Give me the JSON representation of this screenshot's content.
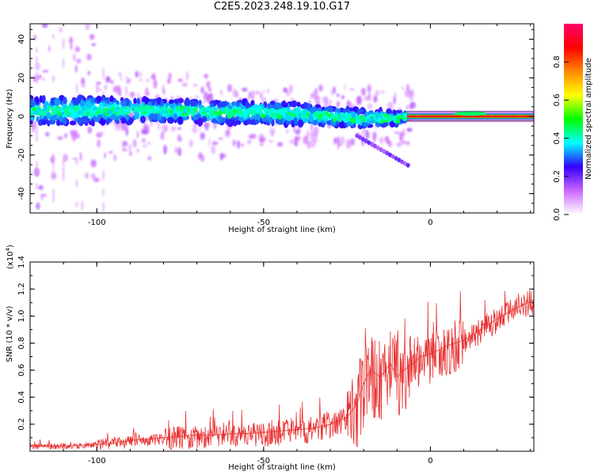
{
  "title": "C2E5.2023.248.19.10.G17",
  "chart_data": [
    {
      "type": "heatmap",
      "title": "C2E5.2023.248.19.10.G17",
      "xlabel": "Height of straight line (km)",
      "ylabel": "Frequency (Hz)",
      "xlim": [
        -120,
        31
      ],
      "ylim": [
        -50,
        48
      ],
      "xticks": [
        -100,
        -50,
        0
      ],
      "xtick_labels": [
        "-100",
        "-50",
        "0"
      ],
      "yticks": [
        -40,
        -20,
        0,
        20,
        40
      ],
      "ytick_labels": [
        "-40",
        "-20",
        "0",
        "20",
        "40"
      ],
      "description_series": {
        "name": "Normalized spectral amplitude ridge",
        "x": [
          -118,
          -100,
          -80,
          -60,
          -50,
          -40,
          -30,
          -20,
          -10,
          -7,
          0,
          10,
          20,
          30
        ],
        "center_freq": [
          3,
          3,
          3,
          2,
          2,
          1,
          0,
          -1,
          -1,
          0,
          0,
          0,
          0,
          0
        ],
        "spread": [
          6,
          6,
          5,
          5,
          5,
          5,
          4,
          4,
          3,
          1,
          1,
          1.5,
          1,
          1
        ],
        "amplitude": [
          0.35,
          0.35,
          0.35,
          0.33,
          0.33,
          0.35,
          0.38,
          0.4,
          0.45,
          0.9,
          0.88,
          0.9,
          0.88,
          0.88
        ]
      },
      "colorbar": {
        "label": "Normalized spectral amplitude",
        "range": [
          0,
          1
        ],
        "ticks": [
          0.0,
          0.2,
          0.4,
          0.6,
          0.8
        ],
        "tick_labels": [
          "0.0",
          "0.2",
          "0.4",
          "0.6",
          "0.8"
        ],
        "colors": [
          "#ffffff",
          "#cc66ff",
          "#3300ff",
          "#00ffff",
          "#00ff00",
          "#ffff00",
          "#ff8800",
          "#ff0000",
          "#ff0066"
        ]
      }
    },
    {
      "type": "line",
      "title": "",
      "xlabel": "Height of straight line (km)",
      "ylabel": "SNR (10 * v/v)",
      "scale_label": "(x10",
      "scale_exp": "4",
      "scale_close": ")",
      "xlim": [
        -120,
        31
      ],
      "ylim": [
        0,
        1.4
      ],
      "xticks": [
        -100,
        -50,
        0
      ],
      "xtick_labels": [
        "-100",
        "-50",
        "0"
      ],
      "yticks": [
        0.2,
        0.4,
        0.6,
        0.8,
        1.0,
        1.2,
        1.4
      ],
      "ytick_labels": [
        "0.2",
        "0.4",
        "0.6",
        "0.8",
        "1.0",
        "1.2",
        "1.4"
      ],
      "series": [
        {
          "name": "SNR",
          "color": "#e83030",
          "x": [
            -120,
            -110,
            -100,
            -95,
            -90,
            -85,
            -80,
            -75,
            -70,
            -65,
            -60,
            -55,
            -50,
            -45,
            -40,
            -35,
            -30,
            -25,
            -22,
            -20,
            -18,
            -15,
            -12,
            -10,
            -8,
            -5,
            -3,
            0,
            5,
            10,
            15,
            20,
            25,
            31
          ],
          "y": [
            0.04,
            0.04,
            0.05,
            0.06,
            0.08,
            0.09,
            0.1,
            0.11,
            0.12,
            0.12,
            0.13,
            0.13,
            0.14,
            0.15,
            0.16,
            0.17,
            0.2,
            0.25,
            0.35,
            0.5,
            0.6,
            0.55,
            0.65,
            0.55,
            0.6,
            0.65,
            0.7,
            0.72,
            0.78,
            0.82,
            0.9,
            0.98,
            1.05,
            1.12
          ]
        }
      ]
    }
  ]
}
